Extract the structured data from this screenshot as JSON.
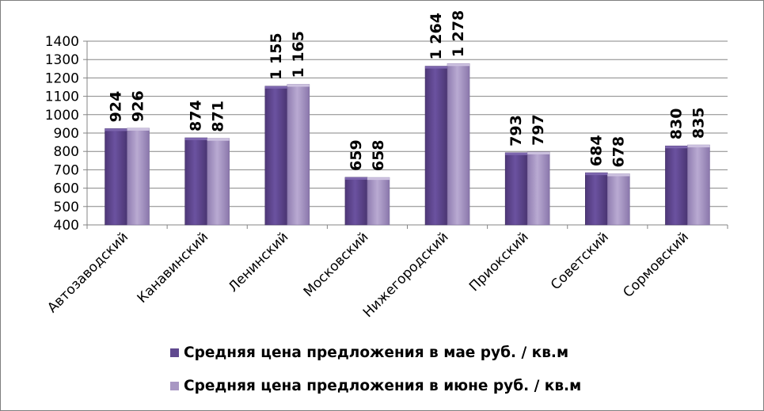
{
  "chart_data": {
    "type": "bar",
    "title": "",
    "xlabel": "",
    "ylabel": "",
    "ylim": [
      400,
      1400
    ],
    "yticks": [
      400,
      500,
      600,
      700,
      800,
      900,
      1000,
      1100,
      1200,
      1300,
      1400
    ],
    "grid": true,
    "legend_position": "bottom",
    "categories": [
      "Автозаводский",
      "Канавинский",
      "Ленинский",
      "Московский",
      "Нижегородский",
      "Приокский",
      "Советский",
      "Сормовский"
    ],
    "series": [
      {
        "name": "Средняя цена предложения в мае руб. / кв.м",
        "color": "#60498f",
        "values": [
          924,
          874,
          1155,
          659,
          1264,
          793,
          684,
          830
        ],
        "labels": [
          "924",
          "874",
          "1 155",
          "659",
          "1 264",
          "793",
          "684",
          "830"
        ]
      },
      {
        "name": "Средняя цена предложения в июне руб. / кв.м",
        "color": "#a897c3",
        "values": [
          926,
          871,
          1165,
          658,
          1278,
          797,
          678,
          835
        ],
        "labels": [
          "926",
          "871",
          "1 165",
          "658",
          "1 278",
          "797",
          "678",
          "835"
        ]
      }
    ]
  }
}
